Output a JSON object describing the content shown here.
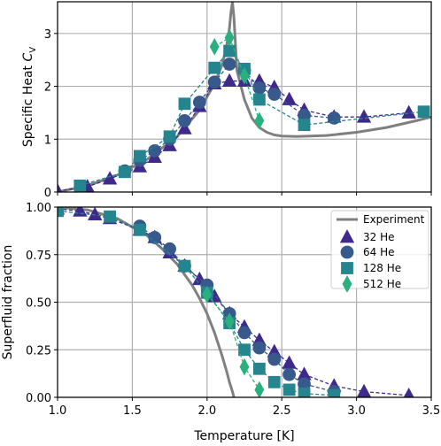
{
  "chart_data": [
    {
      "type": "line",
      "ylabel_text": "Specific Heat ",
      "ylabel_symbol": "C",
      "ylabel_sub": "V",
      "xlim": [
        1.0,
        3.5
      ],
      "ylim": [
        0,
        3.6
      ],
      "xticks": [
        1.0,
        1.5,
        2.0,
        2.5,
        3.0,
        3.5
      ],
      "yticks": [
        0,
        1,
        2,
        3
      ],
      "ytick_labels": [
        "0",
        "1",
        "2",
        "3"
      ],
      "grid": true,
      "experiment": {
        "x": [
          1.0,
          1.2,
          1.4,
          1.6,
          1.8,
          1.95,
          2.05,
          2.1,
          2.13,
          2.15,
          2.16,
          2.17,
          2.18,
          2.2,
          2.25,
          2.3,
          2.35,
          2.4,
          2.45,
          2.5,
          2.6,
          2.8,
          3.0,
          3.2,
          3.4,
          3.5
        ],
        "y": [
          0.0,
          0.12,
          0.32,
          0.62,
          1.05,
          1.55,
          2.05,
          2.4,
          2.75,
          3.1,
          3.4,
          3.6,
          3.3,
          2.3,
          1.75,
          1.4,
          1.22,
          1.13,
          1.08,
          1.06,
          1.05,
          1.07,
          1.13,
          1.22,
          1.35,
          1.42
        ]
      },
      "series": [
        {
          "name": "32 He",
          "marker": "triangle",
          "color": "#3f2a8c",
          "x": [
            1.0,
            1.2,
            1.35,
            1.55,
            1.65,
            1.75,
            1.85,
            1.95,
            2.05,
            2.15,
            2.25,
            2.35,
            2.45,
            2.55,
            2.65,
            2.85,
            3.05,
            3.35
          ],
          "y": [
            0.02,
            0.1,
            0.25,
            0.48,
            0.66,
            0.88,
            1.2,
            1.62,
            2.05,
            2.1,
            2.1,
            2.1,
            1.98,
            1.75,
            1.55,
            1.42,
            1.42,
            1.5
          ]
        },
        {
          "name": "64 He",
          "marker": "circle",
          "color": "#37598c",
          "x": [
            1.45,
            1.55,
            1.65,
            1.75,
            1.85,
            1.95,
            2.05,
            2.15,
            2.25,
            2.35,
            2.45,
            2.65,
            2.85
          ],
          "y": [
            0.4,
            0.6,
            0.78,
            1.0,
            1.35,
            1.7,
            2.08,
            2.42,
            2.3,
            1.97,
            1.85,
            1.45,
            1.4
          ]
        },
        {
          "name": "128 He",
          "marker": "square",
          "color": "#25858e",
          "x": [
            1.15,
            1.45,
            1.55,
            1.75,
            1.85,
            2.05,
            2.15,
            2.25,
            2.35,
            2.65,
            3.45
          ],
          "y": [
            0.12,
            0.38,
            0.68,
            1.05,
            1.67,
            2.35,
            2.67,
            2.33,
            1.75,
            1.27,
            1.52
          ]
        },
        {
          "name": "512 He",
          "marker": "diamond",
          "color": "#2ab07f",
          "x": [
            2.05,
            2.15,
            2.25,
            2.35
          ],
          "y": [
            2.75,
            2.92,
            2.2,
            1.35
          ]
        }
      ]
    },
    {
      "type": "line",
      "ylabel": "Superfluid fraction",
      "xlabel": "Temperature [K]",
      "xlim": [
        1.0,
        3.5
      ],
      "ylim": [
        0,
        1.0
      ],
      "xticks": [
        1.0,
        1.5,
        2.0,
        2.5,
        3.0,
        3.5
      ],
      "xtick_labels": [
        "1.0",
        "1.5",
        "2.0",
        "2.5",
        "3.0",
        "3.5"
      ],
      "yticks": [
        0,
        0.25,
        0.5,
        0.75,
        1.0
      ],
      "ytick_labels": [
        "0.00",
        "0.25",
        "0.50",
        "0.75",
        "1.00"
      ],
      "grid": true,
      "legend_position": "right",
      "experiment": {
        "name": "Experiment",
        "color": "#808080",
        "x": [
          1.0,
          1.2,
          1.4,
          1.6,
          1.7,
          1.8,
          1.9,
          1.95,
          2.0,
          2.05,
          2.1,
          2.13,
          2.15,
          2.17,
          2.18
        ],
        "y": [
          1.0,
          0.985,
          0.94,
          0.85,
          0.78,
          0.7,
          0.59,
          0.52,
          0.44,
          0.34,
          0.22,
          0.14,
          0.08,
          0.03,
          0.0
        ]
      },
      "series": [
        {
          "name": "32 He",
          "marker": "triangle",
          "color": "#3f2a8c",
          "x": [
            1.0,
            1.15,
            1.25,
            1.35,
            1.55,
            1.65,
            1.75,
            1.85,
            1.95,
            2.05,
            2.15,
            2.25,
            2.35,
            2.45,
            2.55,
            2.65,
            2.85,
            3.05,
            3.35
          ],
          "y": [
            0.99,
            0.98,
            0.96,
            0.94,
            0.88,
            0.84,
            0.76,
            0.69,
            0.62,
            0.53,
            0.44,
            0.37,
            0.3,
            0.24,
            0.18,
            0.12,
            0.06,
            0.03,
            0.01
          ]
        },
        {
          "name": "64 He",
          "marker": "circle",
          "color": "#37598c",
          "x": [
            1.55,
            1.65,
            1.75,
            1.85,
            2.0,
            2.15,
            2.25,
            2.35,
            2.45,
            2.55,
            2.65,
            2.85
          ],
          "y": [
            0.9,
            0.84,
            0.78,
            0.69,
            0.59,
            0.44,
            0.34,
            0.26,
            0.2,
            0.12,
            0.07,
            0.03
          ]
        },
        {
          "name": "128 He",
          "marker": "square",
          "color": "#25858e",
          "x": [
            1.0,
            1.35,
            1.55,
            1.85,
            2.0,
            2.15,
            2.25,
            2.35,
            2.45,
            2.55,
            2.65,
            2.85
          ],
          "y": [
            0.98,
            0.95,
            0.88,
            0.69,
            0.55,
            0.39,
            0.25,
            0.15,
            0.08,
            0.04,
            0.02,
            0.01
          ]
        },
        {
          "name": "512 He",
          "marker": "diamond",
          "color": "#2ab07f",
          "x": [
            2.0,
            2.15,
            2.25,
            2.35
          ],
          "y": [
            0.54,
            0.4,
            0.16,
            0.04
          ]
        }
      ]
    }
  ]
}
